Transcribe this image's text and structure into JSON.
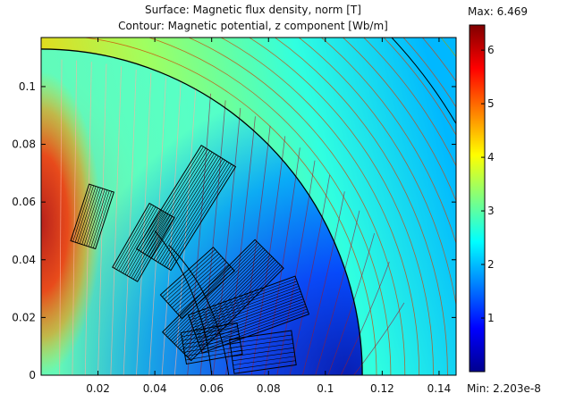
{
  "chart_data": {
    "type": "heatmap",
    "title": "Surface: Magnetic flux density, norm [T]",
    "subtitle": "Contour: Magnetic potential, z component [Wb/m]",
    "xlabel": "",
    "ylabel": "",
    "xlim": [
      0,
      0.146
    ],
    "ylim": [
      0,
      0.117
    ],
    "x_ticks": [
      "0.02",
      "0.04",
      "0.06",
      "0.08",
      "0.1",
      "0.12",
      "0.14"
    ],
    "y_ticks": [
      "0",
      "0.02",
      "0.04",
      "0.06",
      "0.08",
      "0.1"
    ],
    "colorbar": {
      "max_label": "Max: 6.469",
      "min_label": "Min: 2.203e-8",
      "ticks": [
        "1",
        "2",
        "3",
        "4",
        "5",
        "6"
      ],
      "range": [
        2.203e-08,
        6.469
      ],
      "colormap": "jet"
    },
    "features": {
      "stator_outer_radius": 0.113,
      "contour_levels": 40,
      "high_field_region": "left edge near x=0, y 0.02-0.07",
      "low_field_region": "inside stator near (0.08, 0.01)"
    }
  }
}
